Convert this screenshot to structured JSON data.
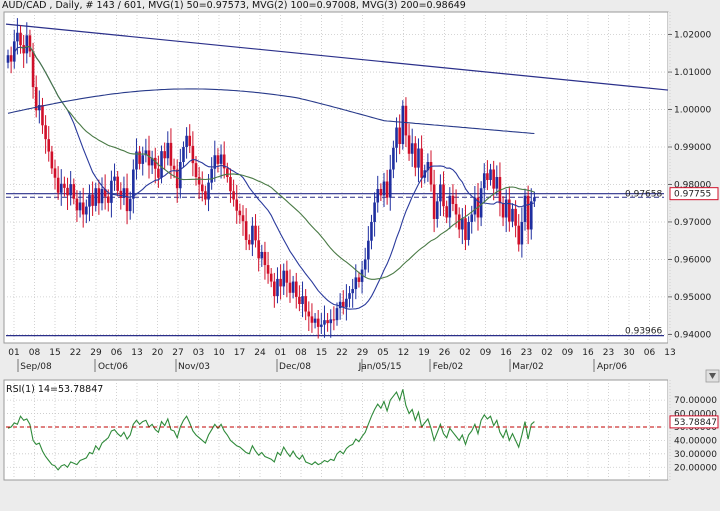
{
  "header": {
    "title": "AUD/CAD , Daily, # 143 / 601, MVG(1) 50=0.97573, MVG(2) 100=0.97008, MVG(3) 200=0.98649"
  },
  "rsi_header": "RSI(1) 14=53.78847",
  "colors": {
    "up": "#1f2fa0",
    "down": "#d0102a",
    "ma50": "#2a3a9c",
    "ma100": "#4a7a46",
    "ma200": "#283a8a",
    "trendline": "#2a2f8a",
    "rsi": "#2f8a3a",
    "rsi_ref": "#c00000",
    "price_line": "#2a2f8a",
    "grid": "#c8c8c8",
    "panel_bg": "#ffffff",
    "window_bg": "#ececec"
  },
  "chart_data": [
    {
      "type": "candlestick",
      "symbol": "AUD/CAD",
      "timeframe": "Daily",
      "y_range": [
        0.9385,
        1.0255
      ],
      "y_ticks": [
        "1.02000",
        "1.01000",
        "1.00000",
        "0.99000",
        "0.98000",
        "0.97000",
        "0.96000",
        "0.95000",
        "0.94000"
      ],
      "x_tick_labels": [
        "01",
        "08",
        "15",
        "22",
        "29",
        "06",
        "13",
        "20",
        "27",
        "03",
        "10",
        "17",
        "24",
        "01",
        "08",
        "15",
        "22",
        "29",
        "05",
        "12",
        "19",
        "26",
        "02",
        "09",
        "16",
        "23",
        "02",
        "09",
        "16",
        "23",
        "30",
        "06",
        "13"
      ],
      "month_labels": [
        "Sep/08",
        "Oct/06",
        "Nov/03",
        "Dec/08",
        "Jan/05/15",
        "Feb/02",
        "Mar/02",
        "Apr/06"
      ],
      "value_labels": [
        "0.97658",
        "0.97755",
        "0.93966"
      ],
      "moving_averages": [
        {
          "name": "MVG(1) 50",
          "value": 0.97573
        },
        {
          "name": "MVG(2) 100",
          "value": 0.97008
        },
        {
          "name": "MVG(3) 200",
          "value": 0.98649
        }
      ],
      "closes": [
        1.0145,
        1.0128,
        1.0182,
        1.0205,
        1.0172,
        1.015,
        1.0198,
        1.0155,
        1.006,
        0.9998,
        1.0012,
        0.9958,
        0.9921,
        0.9888,
        0.9843,
        0.9818,
        0.9778,
        0.9802,
        0.9791,
        0.9771,
        0.9801,
        0.9762,
        0.9731,
        0.9752,
        0.972,
        0.9741,
        0.9773,
        0.9743,
        0.979,
        0.975,
        0.9788,
        0.9768,
        0.9751,
        0.981,
        0.9821,
        0.9783,
        0.9764,
        0.979,
        0.9729,
        0.9762,
        0.984,
        0.9888,
        0.9855,
        0.9878,
        0.9891,
        0.9851,
        0.9871,
        0.9842,
        0.9818,
        0.9889,
        0.987,
        0.9911,
        0.985,
        0.984,
        0.979,
        0.986,
        0.99,
        0.993,
        0.9903,
        0.9857,
        0.982,
        0.98,
        0.9782,
        0.976,
        0.9805,
        0.9842,
        0.9878,
        0.9855,
        0.988,
        0.9843,
        0.982,
        0.9782,
        0.976,
        0.973,
        0.9718,
        0.9702,
        0.9652,
        0.964,
        0.969,
        0.9651,
        0.9603,
        0.962,
        0.9585,
        0.9562,
        0.9541,
        0.9502,
        0.9548,
        0.9528,
        0.957,
        0.9538,
        0.9511,
        0.9541,
        0.95,
        0.9481,
        0.9502,
        0.9461,
        0.9448,
        0.9431,
        0.9442,
        0.942,
        0.9426,
        0.9438,
        0.943,
        0.944,
        0.9438,
        0.947,
        0.9487,
        0.9472,
        0.9495,
        0.951,
        0.9521,
        0.9552,
        0.954,
        0.9573,
        0.96,
        0.965,
        0.97,
        0.9752,
        0.9788,
        0.9771,
        0.9808,
        0.9765,
        0.984,
        0.9898,
        0.9952,
        0.9908,
        1.001,
        0.9931,
        0.9882,
        0.991,
        0.9845,
        0.9896,
        0.9818,
        0.9838,
        0.986,
        0.98,
        0.9708,
        0.9755,
        0.98,
        0.9742,
        0.9712,
        0.977,
        0.9748,
        0.972,
        0.968,
        0.971,
        0.9652,
        0.97,
        0.972,
        0.9765,
        0.9712,
        0.979,
        0.983,
        0.9812,
        0.984,
        0.9789,
        0.982,
        0.975,
        0.9712,
        0.976,
        0.9701,
        0.9735,
        0.969,
        0.964,
        0.97,
        0.977,
        0.968,
        0.9755,
        0.9766
      ]
    },
    {
      "type": "line",
      "title": "RSI(1) 14=53.78847",
      "y_range": [
        12,
        82
      ],
      "y_ticks": [
        "70.00000",
        "60.00000",
        "50.00000",
        "40.00000",
        "30.00000",
        "20.00000"
      ],
      "reference_level": 50,
      "value_labels": [
        "53.78847"
      ],
      "values": [
        49,
        50,
        53,
        52,
        58,
        55,
        56,
        52,
        40,
        37,
        38,
        32,
        28,
        25,
        22,
        21,
        18,
        21,
        22,
        20,
        24,
        23,
        22,
        25,
        26,
        27,
        31,
        30,
        36,
        33,
        38,
        40,
        42,
        47,
        48,
        45,
        43,
        46,
        41,
        44,
        52,
        55,
        52,
        54,
        55,
        50,
        52,
        48,
        46,
        54,
        51,
        56,
        48,
        47,
        42,
        50,
        55,
        58,
        53,
        47,
        44,
        42,
        40,
        38,
        44,
        48,
        52,
        49,
        52,
        47,
        44,
        40,
        38,
        36,
        35,
        33,
        31,
        30,
        36,
        32,
        29,
        31,
        28,
        27,
        26,
        24,
        31,
        29,
        35,
        31,
        28,
        32,
        28,
        26,
        29,
        24,
        23,
        22,
        24,
        22,
        23,
        25,
        24,
        26,
        25,
        30,
        32,
        30,
        34,
        36,
        37,
        41,
        39,
        43,
        46,
        52,
        58,
        63,
        67,
        64,
        69,
        62,
        70,
        73,
        76,
        70,
        78,
        66,
        60,
        63,
        55,
        61,
        50,
        53,
        56,
        49,
        40,
        46,
        52,
        45,
        42,
        49,
        46,
        43,
        40,
        44,
        37,
        44,
        47,
        52,
        45,
        55,
        59,
        56,
        58,
        51,
        55,
        46,
        42,
        48,
        40,
        45,
        40,
        35,
        44,
        54,
        41,
        52,
        54
      ]
    }
  ]
}
